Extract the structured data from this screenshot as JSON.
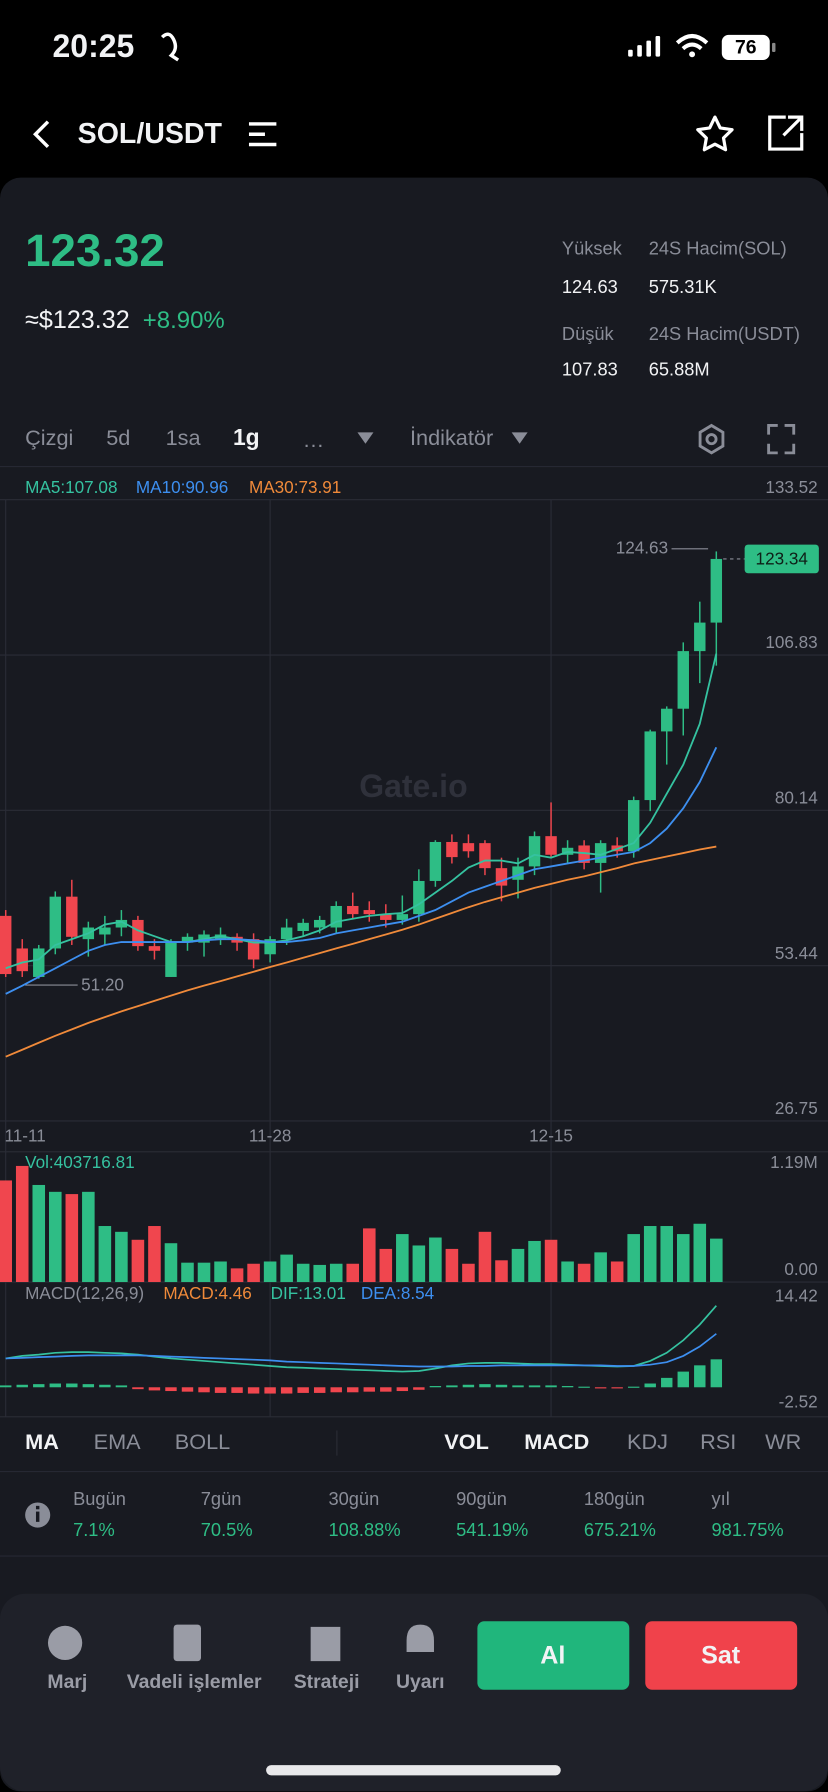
{
  "status": {
    "time": "20:25",
    "battery": "76"
  },
  "header": {
    "pair": "SOL/USDT"
  },
  "ticker": {
    "price": "123.32",
    "usd": "≈$123.32",
    "change": "+8.90%",
    "stats": [
      {
        "label": "Yüksek",
        "value": "124.63"
      },
      {
        "label": "24S Hacim(SOL)",
        "value": "575.31K"
      },
      {
        "label": "Düşük",
        "value": "107.83"
      },
      {
        "label": "24S Hacim(USDT)",
        "value": "65.88M"
      }
    ]
  },
  "intervals": [
    "Çizgi",
    "5d",
    "1sa",
    "1g",
    "…"
  ],
  "indicator_menu": "İndikatör",
  "chart": {
    "type": "candlestick",
    "legend": [
      "MA5:107.08",
      "MA10:90.96",
      "MA30:73.91"
    ],
    "watermark": "Gate.io",
    "colors": {
      "up": "#2ebd85",
      "down": "#f0464e"
    },
    "ylim": [
      26.75,
      133.52
    ],
    "yticks": [
      133.52,
      106.83,
      80.14,
      53.44,
      26.75
    ],
    "grid": true,
    "categories": [
      "11-11",
      null,
      null,
      null,
      null,
      null,
      null,
      null,
      null,
      null,
      null,
      null,
      null,
      null,
      null,
      null,
      "11-28",
      null,
      null,
      null,
      null,
      null,
      null,
      null,
      null,
      null,
      null,
      null,
      null,
      null,
      null,
      null,
      null,
      "12-15",
      null,
      null,
      null,
      null,
      null,
      null,
      null,
      null,
      null,
      null
    ],
    "open": [
      62,
      56.4,
      51.5,
      56.4,
      65.3,
      58,
      58.8,
      60,
      61.3,
      56.8,
      51.5,
      57.4,
      57.4,
      58,
      58.4,
      58,
      55.4,
      58,
      59.4,
      60,
      60,
      63.7,
      63,
      62.3,
      61.3,
      62.3,
      68,
      74.7,
      74.5,
      74.5,
      70.2,
      68.2,
      70.5,
      75.7,
      72.5,
      74.1,
      71.1,
      74.1,
      73.1,
      81.9,
      93.7,
      97.6,
      107.5,
      112.4
    ],
    "high": [
      63,
      58,
      57,
      66.2,
      68.2,
      61,
      62,
      63,
      62,
      58,
      58,
      59,
      59.5,
      60,
      59,
      59,
      58.5,
      61.5,
      61.5,
      62,
      64.5,
      66,
      64.5,
      64,
      65.5,
      70,
      75,
      76,
      76,
      75,
      72,
      72,
      76.5,
      81.5,
      75,
      75,
      75,
      75.5,
      82.5,
      94,
      98,
      109,
      116,
      124.63
    ],
    "low": [
      51.5,
      51.5,
      51.2,
      55.4,
      57,
      55,
      57,
      58.5,
      56,
      54.5,
      51.5,
      56,
      55,
      57,
      56,
      53,
      54,
      57,
      58.5,
      59,
      59,
      61.5,
      61,
      60,
      60.5,
      61,
      67,
      71,
      72,
      69,
      64.5,
      65,
      69,
      72,
      71,
      70,
      66,
      72,
      72,
      80,
      88,
      93,
      102,
      105
    ],
    "close": [
      52,
      52.5,
      56.4,
      65.3,
      58.4,
      60,
      60,
      61.3,
      56.8,
      56,
      57.4,
      58.4,
      58.8,
      58.8,
      57.4,
      54.5,
      58,
      60,
      60.8,
      61.3,
      63.7,
      62.3,
      62.3,
      61.3,
      62.3,
      68,
      74.7,
      72.1,
      73.1,
      70.2,
      67.2,
      70.5,
      75.7,
      72.5,
      73.7,
      71.1,
      74.5,
      73.1,
      81.9,
      93.7,
      97.6,
      107.5,
      112.4,
      123.34
    ],
    "ma": [
      {
        "name": "MA5",
        "color": "#35c2a0",
        "values": [
          53,
          54,
          54.5,
          57,
          58,
          59,
          60.5,
          61,
          59.5,
          58.5,
          57.5,
          57.5,
          58,
          58.5,
          58,
          57.4,
          57.4,
          57.8,
          58.5,
          59.5,
          61,
          61.5,
          62,
          62.3,
          62.5,
          64,
          66,
          68,
          70.3,
          71.5,
          71.5,
          71,
          72.5,
          72,
          73,
          72.8,
          72.5,
          73.5,
          74.5,
          78,
          83,
          88,
          95,
          107.08
        ]
      },
      {
        "name": "MA10",
        "color": "#3d8ff0",
        "values": [
          48.6,
          50,
          51.5,
          53,
          54.5,
          56,
          57,
          57.5,
          57.5,
          57.5,
          57.5,
          57.5,
          57.8,
          58,
          58,
          57.8,
          57.5,
          57.5,
          57.8,
          58.2,
          59,
          59.5,
          60,
          60.5,
          61,
          62,
          63,
          64.5,
          66,
          67,
          68,
          69,
          70,
          70.5,
          71,
          71.5,
          72,
          72.5,
          73,
          74.5,
          77,
          80.5,
          85,
          90.96
        ]
      },
      {
        "name": "MA30",
        "color": "#f08a3a",
        "values": [
          37.8,
          39,
          40.2,
          41.4,
          42.5,
          43.6,
          44.6,
          45.6,
          46.5,
          47.4,
          48.3,
          49.2,
          50,
          50.8,
          51.6,
          52.4,
          53.2,
          54,
          54.8,
          55.6,
          56.4,
          57.2,
          58,
          58.8,
          59.6,
          60.5,
          61.5,
          62.5,
          63.5,
          64.4,
          65.2,
          66,
          66.8,
          67.5,
          68.2,
          68.8,
          69.5,
          70.2,
          71,
          71.6,
          72.2,
          72.8,
          73.4,
          73.91
        ]
      }
    ],
    "high_label": "124.63",
    "low_label": "51.20",
    "last_label": "123.34",
    "volume": {
      "label": "Vol:403716.81",
      "ylim": [
        0,
        1190000
      ],
      "yticks": [
        {
          "value": 1190000,
          "label": "1.19M"
        },
        {
          "value": 0,
          "label": "0.00"
        }
      ],
      "values": [
        945000,
        1080000,
        903000,
        839000,
        818000,
        839000,
        521000,
        467000,
        393000,
        521000,
        361000,
        180000,
        180000,
        191000,
        127000,
        170000,
        191000,
        255000,
        170000,
        159000,
        170000,
        170000,
        499000,
        308000,
        446000,
        340000,
        414000,
        308000,
        170000,
        467000,
        202000,
        308000,
        382000,
        393000,
        191000,
        170000,
        276000,
        191000,
        446000,
        521000,
        521000,
        446000,
        542000,
        403716.81
      ]
    },
    "macd": {
      "labels": [
        "MACD(12,26,9)",
        "MACD:4.46",
        "DIF:13.01",
        "DEA:8.54"
      ],
      "label_colors": [
        "#8a8d98",
        "#f08a3a",
        "#35c2a0",
        "#3d8ff0"
      ],
      "ylim": [
        -2.52,
        14.42
      ],
      "yticks": [
        14.42,
        -2.52
      ],
      "hist": [
        0.3,
        0.4,
        0.5,
        0.6,
        0.6,
        0.5,
        0.4,
        0.3,
        -0.3,
        -0.5,
        -0.6,
        -0.7,
        -0.8,
        -0.9,
        -0.9,
        -1,
        -1,
        -1,
        -0.9,
        -0.9,
        -0.8,
        -0.8,
        -0.7,
        -0.7,
        -0.6,
        -0.4,
        0.2,
        0.3,
        0.4,
        0.5,
        0.4,
        0.3,
        0.3,
        0.3,
        0.2,
        0.1,
        -0.1,
        -0.1,
        0.1,
        0.6,
        1.5,
        2.5,
        3.5,
        4.46
      ],
      "dif": [
        4.6,
        5,
        5.2,
        5.5,
        5.6,
        5.6,
        5.5,
        5.4,
        5.2,
        4.9,
        4.6,
        4.4,
        4.2,
        4,
        3.8,
        3.6,
        3.4,
        3.2,
        3.1,
        3,
        2.9,
        2.8,
        2.7,
        2.6,
        2.5,
        2.6,
        3,
        3.5,
        3.8,
        3.9,
        3.9,
        3.8,
        3.7,
        3.7,
        3.6,
        3.5,
        3.4,
        3.3,
        3.4,
        4.2,
        5.5,
        7.5,
        10,
        13.01
      ],
      "dea": [
        4.6,
        4.7,
        4.8,
        4.9,
        5,
        5.1,
        5.1,
        5.1,
        5.1,
        5,
        4.9,
        4.8,
        4.7,
        4.6,
        4.5,
        4.4,
        4.3,
        4.1,
        4,
        3.9,
        3.8,
        3.7,
        3.6,
        3.5,
        3.4,
        3.3,
        3.3,
        3.3,
        3.4,
        3.4,
        3.5,
        3.5,
        3.5,
        3.5,
        3.5,
        3.5,
        3.5,
        3.4,
        3.4,
        3.6,
        4,
        5,
        6.5,
        8.54
      ]
    }
  },
  "indicator_tabs": {
    "main": [
      "MA",
      "EMA",
      "BOLL"
    ],
    "sub": [
      "VOL",
      "MACD",
      "KDJ",
      "RSI",
      "WR"
    ]
  },
  "performance": [
    {
      "label": "Bugün",
      "value": "7.1%"
    },
    {
      "label": "7gün",
      "value": "70.5%"
    },
    {
      "label": "30gün",
      "value": "108.88%"
    },
    {
      "label": "90gün",
      "value": "541.19%"
    },
    {
      "label": "180gün",
      "value": "675.21%"
    },
    {
      "label": "yıl",
      "value": "981.75%"
    }
  ],
  "nav": [
    "Marj",
    "Vadeli işlemler",
    "Strateji",
    "Uyarı"
  ],
  "buy": "Al",
  "sell": "Sat"
}
